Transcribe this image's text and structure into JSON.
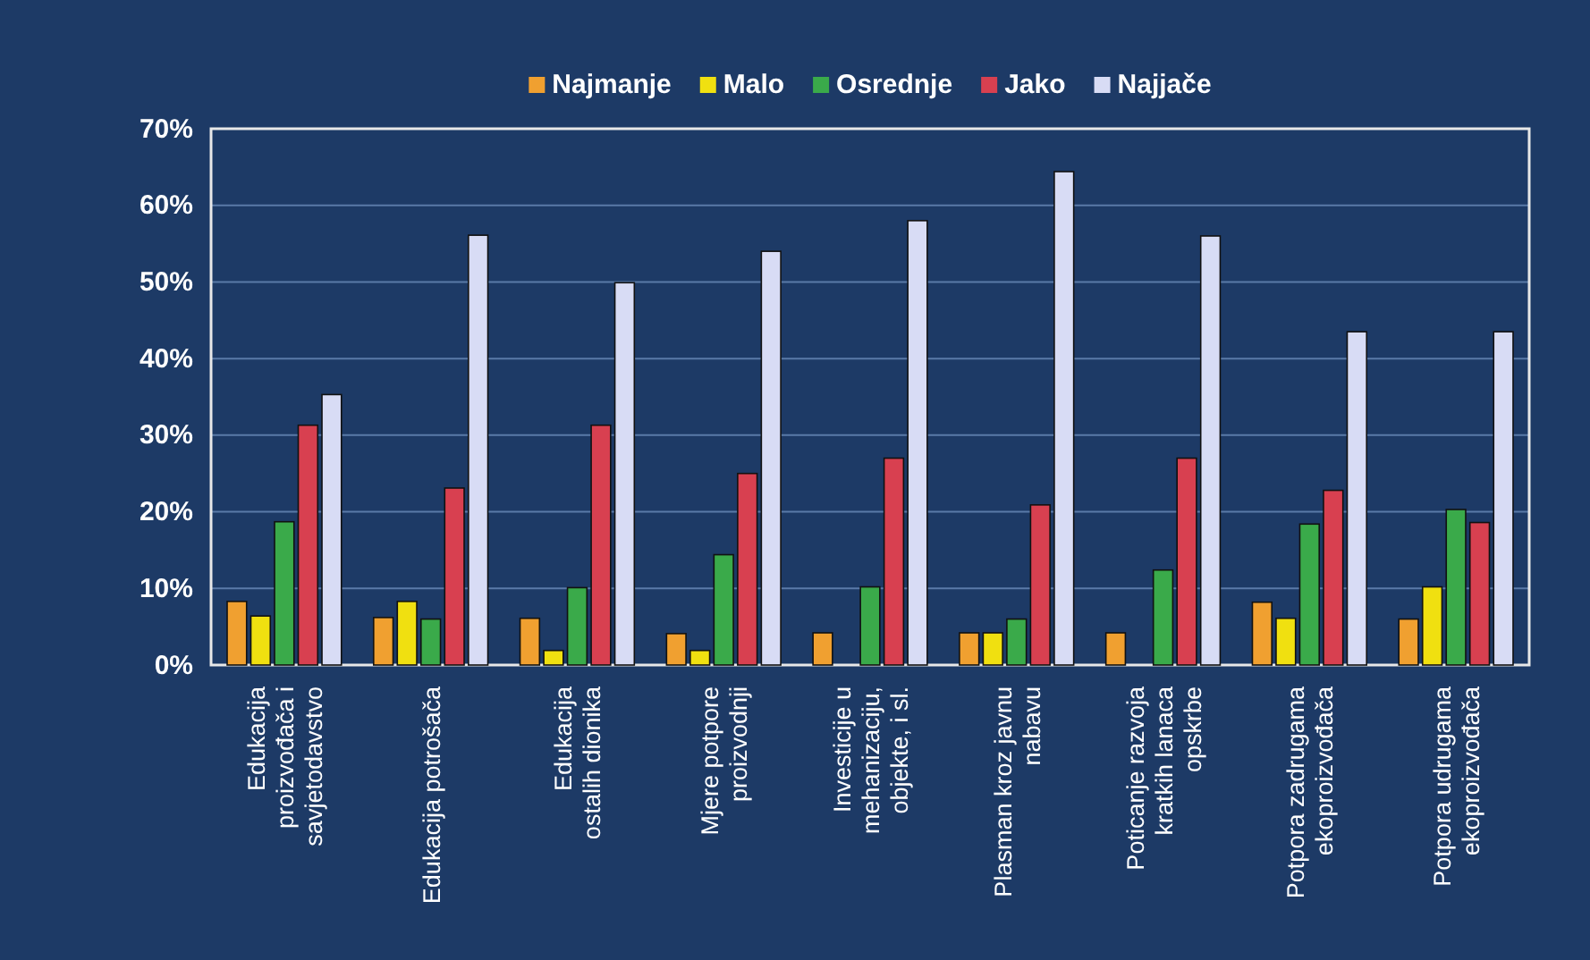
{
  "chart_data": {
    "type": "bar",
    "categories": [
      "Edukacija\nproizvođača i\nsavjetodavstvo",
      "Edukacija potrošača",
      "Edukacija\nostalih dionika",
      "Mjere potpore\nproizvodnji",
      "Investicije u\nmehanizaciju,\nobjekte, i sl.",
      "Plasman kroz javnu\nnabavu",
      "Poticanje razvoja\nkratkih lanaca\nopskrbe",
      "Potpora zadrugama\nekoproizvođača",
      "Potpora udrugama\nekoproizvođača"
    ],
    "series": [
      {
        "name": "Najmanje",
        "color": "#f0a030",
        "values": [
          8.3,
          6.2,
          6.1,
          4.1,
          4.2,
          4.2,
          4.2,
          8.2,
          6.0
        ]
      },
      {
        "name": "Malo",
        "color": "#f0e010",
        "values": [
          6.4,
          8.3,
          1.9,
          1.9,
          null,
          4.2,
          null,
          6.1,
          10.2
        ]
      },
      {
        "name": "Osrednje",
        "color": "#3aaa4a",
        "values": [
          18.7,
          6.0,
          10.1,
          14.4,
          10.2,
          6.0,
          12.4,
          18.4,
          20.3
        ]
      },
      {
        "name": "Jako",
        "color": "#d84050",
        "values": [
          31.3,
          23.1,
          31.3,
          25.0,
          27.0,
          20.9,
          27.0,
          22.8,
          18.6
        ]
      },
      {
        "name": "Najjače",
        "color": "#d8dcf5",
        "values": [
          35.3,
          56.1,
          49.9,
          54.0,
          58.0,
          64.4,
          56.0,
          43.5,
          43.5
        ]
      }
    ],
    "ylim": [
      0,
      70
    ],
    "yticks": [
      {
        "value": 0,
        "label": "0%"
      },
      {
        "value": 10,
        "label": "10%"
      },
      {
        "value": 20,
        "label": "20%"
      },
      {
        "value": 30,
        "label": "30%"
      },
      {
        "value": 40,
        "label": "40%"
      },
      {
        "value": 50,
        "label": "50%"
      },
      {
        "value": 60,
        "label": "60%"
      },
      {
        "value": 70,
        "label": "70%"
      }
    ],
    "grid": "y",
    "legend": "top"
  }
}
